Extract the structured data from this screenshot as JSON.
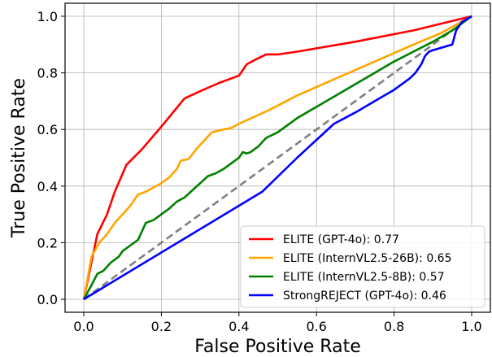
{
  "chart_data": {
    "type": "line",
    "xlabel": "False Positive Rate",
    "ylabel": "True Positive Rate",
    "xlim": [
      0.0,
      1.0
    ],
    "ylim": [
      0.0,
      1.0
    ],
    "xticks": [
      "0.0",
      "0.2",
      "0.4",
      "0.6",
      "0.8",
      "1.0"
    ],
    "yticks": [
      "0.0",
      "0.2",
      "0.4",
      "0.6",
      "0.8",
      "1.0"
    ],
    "grid": true,
    "legend_position": "lower-right",
    "series": [
      {
        "name": "ELITE (GPT-4o): 0.77",
        "color": "#ff0000",
        "x": [
          0.0,
          0.035,
          0.06,
          0.08,
          0.11,
          0.15,
          0.2,
          0.26,
          0.3,
          0.35,
          0.4,
          0.42,
          0.44,
          0.47,
          0.5,
          0.55,
          0.7,
          0.85,
          1.0
        ],
        "y": [
          0.0,
          0.23,
          0.3,
          0.38,
          0.475,
          0.53,
          0.61,
          0.71,
          0.735,
          0.765,
          0.79,
          0.83,
          0.845,
          0.865,
          0.865,
          0.875,
          0.91,
          0.95,
          1.0
        ]
      },
      {
        "name": "ELITE (InternVL2.5-26B): 0.65",
        "color": "#ffa500",
        "x": [
          0.0,
          0.02,
          0.04,
          0.06,
          0.08,
          0.1,
          0.12,
          0.14,
          0.16,
          0.18,
          0.2,
          0.22,
          0.24,
          0.25,
          0.27,
          0.29,
          0.31,
          0.33,
          0.36,
          0.38,
          0.4,
          0.44,
          0.48,
          0.55,
          0.65,
          0.75,
          0.85,
          0.92,
          1.0
        ],
        "y": [
          0.0,
          0.15,
          0.2,
          0.23,
          0.27,
          0.3,
          0.33,
          0.37,
          0.38,
          0.395,
          0.41,
          0.43,
          0.46,
          0.49,
          0.495,
          0.53,
          0.56,
          0.59,
          0.6,
          0.605,
          0.62,
          0.645,
          0.67,
          0.72,
          0.78,
          0.84,
          0.9,
          0.94,
          1.0
        ]
      },
      {
        "name": "ELITE (InternVL2.5-8B): 0.57",
        "color": "#008000",
        "x": [
          0.0,
          0.02,
          0.035,
          0.05,
          0.07,
          0.09,
          0.1,
          0.12,
          0.14,
          0.15,
          0.16,
          0.18,
          0.2,
          0.22,
          0.24,
          0.26,
          0.28,
          0.3,
          0.32,
          0.34,
          0.36,
          0.38,
          0.4,
          0.41,
          0.42,
          0.43,
          0.45,
          0.47,
          0.5,
          0.55,
          0.6,
          0.65,
          0.7,
          0.75,
          0.8,
          0.85,
          0.9,
          0.95,
          1.0
        ],
        "y": [
          0.0,
          0.05,
          0.09,
          0.1,
          0.13,
          0.15,
          0.17,
          0.19,
          0.21,
          0.24,
          0.27,
          0.28,
          0.3,
          0.32,
          0.345,
          0.36,
          0.385,
          0.41,
          0.435,
          0.445,
          0.46,
          0.48,
          0.5,
          0.52,
          0.515,
          0.52,
          0.54,
          0.57,
          0.59,
          0.64,
          0.68,
          0.72,
          0.76,
          0.8,
          0.84,
          0.875,
          0.91,
          0.95,
          1.0
        ]
      },
      {
        "name": "StrongREJECT (GPT-4o): 0.46",
        "color": "#0000ff",
        "x": [
          0.0,
          0.46,
          0.55,
          0.645,
          0.7,
          0.75,
          0.8,
          0.84,
          0.855,
          0.87,
          0.88,
          0.89,
          0.9,
          0.95,
          0.96,
          0.975,
          1.0
        ],
        "y": [
          0.0,
          0.38,
          0.5,
          0.62,
          0.66,
          0.7,
          0.74,
          0.78,
          0.8,
          0.83,
          0.86,
          0.875,
          0.88,
          0.9,
          0.95,
          0.98,
          1.0
        ]
      }
    ],
    "baseline": {
      "x": [
        0.0,
        1.0
      ],
      "y": [
        0.0,
        1.0
      ],
      "color": "#808080",
      "style": "dashed"
    }
  }
}
